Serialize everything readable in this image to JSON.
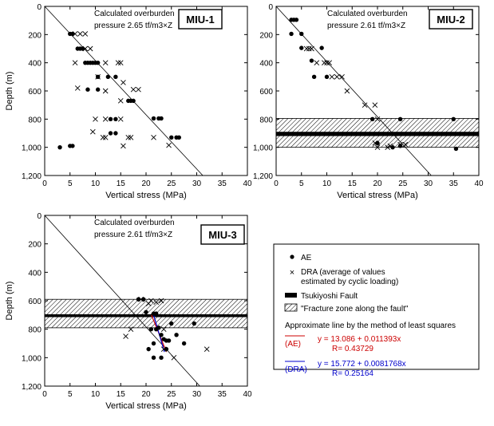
{
  "figure": {
    "xlabel": "Vertical stress (MPa)",
    "ylabel": "Depth (m)",
    "xticks": [
      0,
      5,
      10,
      15,
      20,
      25,
      30,
      35,
      40
    ],
    "yticks": [
      0,
      200,
      400,
      600,
      800,
      "1,000",
      "1,200"
    ]
  },
  "chart_data": [
    {
      "type": "scatter",
      "name": "MIU-1",
      "title": "MIU-1",
      "annotation": [
        "Calculated overburden",
        "pressure 2.65 tf/m3×Z"
      ],
      "xlabel": "Vertical stress (MPa)",
      "ylabel": "Depth (m)",
      "xlim": [
        0,
        40
      ],
      "ylim": [
        1200,
        0
      ],
      "y_inverted": true,
      "overburden_line": [
        [
          0,
          0
        ],
        [
          26,
          1000
        ]
      ],
      "series": [
        {
          "name": "AE",
          "marker": "dot",
          "points": [
            [
              5.0,
              195
            ],
            [
              5.5,
              195
            ],
            [
              6.5,
              300
            ],
            [
              7.0,
              300
            ],
            [
              7.5,
              300
            ],
            [
              8.0,
              400
            ],
            [
              8.5,
              400
            ],
            [
              9.0,
              400
            ],
            [
              9.5,
              400
            ],
            [
              10.0,
              400
            ],
            [
              10.5,
              400
            ],
            [
              8.5,
              590
            ],
            [
              10.5,
              590
            ],
            [
              10.5,
              500
            ],
            [
              12.5,
              500
            ],
            [
              14.0,
              500
            ],
            [
              13.0,
              800
            ],
            [
              14.0,
              800
            ],
            [
              13.0,
              900
            ],
            [
              14.0,
              900
            ],
            [
              16.5,
              670
            ],
            [
              17.0,
              670
            ],
            [
              17.5,
              670
            ],
            [
              21.5,
              795
            ],
            [
              22.5,
              795
            ],
            [
              23.0,
              795
            ],
            [
              25.0,
              930
            ],
            [
              26.0,
              930
            ],
            [
              26.5,
              930
            ],
            [
              3.0,
              1000
            ],
            [
              5.0,
              990
            ],
            [
              5.5,
              990
            ]
          ]
        },
        {
          "name": "DRA",
          "marker": "cross",
          "points": [
            [
              6.0,
              195
            ],
            [
              7.0,
              195
            ],
            [
              8.0,
              195
            ],
            [
              8.0,
              300
            ],
            [
              9.0,
              300
            ],
            [
              6.0,
              400
            ],
            [
              6.5,
              580
            ],
            [
              10.5,
              500
            ],
            [
              12.0,
              400
            ],
            [
              14.5,
              400
            ],
            [
              15.0,
              400
            ],
            [
              12.0,
              600
            ],
            [
              15.5,
              540
            ],
            [
              15.0,
              670
            ],
            [
              17.5,
              590
            ],
            [
              18.5,
              590
            ],
            [
              10.0,
              800
            ],
            [
              12.0,
              800
            ],
            [
              15.0,
              800
            ],
            [
              9.5,
              890
            ],
            [
              11.5,
              930
            ],
            [
              12.0,
              930
            ],
            [
              15.5,
              990
            ],
            [
              16.5,
              930
            ],
            [
              17.0,
              930
            ],
            [
              21.5,
              930
            ],
            [
              24.5,
              985
            ]
          ]
        }
      ]
    },
    {
      "type": "scatter",
      "name": "MIU-2",
      "title": "MIU-2",
      "annotation": [
        "Calculated overburden",
        "pressure 2.61 tf/m3×Z"
      ],
      "xlabel": "Vertical stress (MPa)",
      "ylabel": "",
      "xlim": [
        0,
        40
      ],
      "ylim": [
        1200,
        0
      ],
      "y_inverted": true,
      "overburden_line": [
        [
          0,
          0
        ],
        [
          25,
          980
        ]
      ],
      "bands": [
        {
          "kind": "fracture-zone",
          "from": 795,
          "to": 1000,
          "pattern": "hatch"
        },
        {
          "kind": "fault",
          "from": 890,
          "to": 920,
          "pattern": "solid"
        }
      ],
      "series": [
        {
          "name": "AE",
          "marker": "dot",
          "points": [
            [
              3.0,
              95
            ],
            [
              3.5,
              95
            ],
            [
              4.0,
              95
            ],
            [
              3.0,
              195
            ],
            [
              5.0,
              195
            ],
            [
              5.0,
              295
            ],
            [
              7.0,
              385
            ],
            [
              9.0,
              295
            ],
            [
              7.5,
              500
            ],
            [
              10.0,
              500
            ],
            [
              19.0,
              800
            ],
            [
              24.5,
              800
            ],
            [
              20.0,
              970
            ],
            [
              23.0,
              1000
            ],
            [
              24.5,
              990
            ],
            [
              35.0,
              800
            ],
            [
              35.5,
              1010
            ]
          ]
        },
        {
          "name": "DRA",
          "marker": "cross",
          "points": [
            [
              6.0,
              300
            ],
            [
              6.5,
              300
            ],
            [
              7.0,
              300
            ],
            [
              8.0,
              400
            ],
            [
              9.5,
              400
            ],
            [
              10.0,
              400
            ],
            [
              10.5,
              400
            ],
            [
              11.0,
              500
            ],
            [
              12.0,
              500
            ],
            [
              13.0,
              500
            ],
            [
              14.0,
              600
            ],
            [
              17.5,
              700
            ],
            [
              19.5,
              700
            ],
            [
              20.0,
              800
            ],
            [
              19.5,
              970
            ],
            [
              20.0,
              1000
            ],
            [
              22.0,
              1000
            ],
            [
              22.5,
              990
            ],
            [
              24.5,
              980
            ],
            [
              25.5,
              980
            ]
          ]
        }
      ]
    },
    {
      "type": "scatter",
      "name": "MIU-3",
      "title": "MIU-3",
      "annotation": [
        "Calculated overburden",
        "pressure 2.61 tf/m3×Z"
      ],
      "xlabel": "Vertical stress (MPa)",
      "ylabel": "Depth (m)",
      "xlim": [
        0,
        40
      ],
      "ylim": [
        1200,
        0
      ],
      "y_inverted": true,
      "overburden_line": [
        [
          0,
          0
        ],
        [
          25,
          980
        ]
      ],
      "bands": [
        {
          "kind": "fracture-zone",
          "from": 590,
          "to": 790,
          "pattern": "hatch"
        },
        {
          "kind": "fault",
          "from": 695,
          "to": 715,
          "pattern": "solid"
        }
      ],
      "fit_lines": [
        {
          "label": "AE",
          "color": "#cc0000",
          "intercept": 13.086,
          "slope": 0.011393,
          "range": [
            700,
            960
          ]
        },
        {
          "label": "DRA",
          "color": "#0000cc",
          "intercept": 15.772,
          "slope": 0.0081768,
          "range": [
            700,
            960
          ]
        }
      ],
      "series": [
        {
          "name": "AE",
          "marker": "dot",
          "points": [
            [
              18.5,
              590
            ],
            [
              19.5,
              590
            ],
            [
              20.0,
              680
            ],
            [
              21.5,
              690
            ],
            [
              22.0,
              690
            ],
            [
              21.0,
              800
            ],
            [
              22.0,
              800
            ],
            [
              22.5,
              790
            ],
            [
              23.0,
              840
            ],
            [
              23.5,
              870
            ],
            [
              24.0,
              880
            ],
            [
              24.5,
              880
            ],
            [
              21.5,
              900
            ],
            [
              20.5,
              940
            ],
            [
              24.0,
              940
            ],
            [
              21.5,
              1000
            ],
            [
              23.0,
              1000
            ],
            [
              26.0,
              840
            ],
            [
              27.5,
              900
            ],
            [
              25.0,
              760
            ],
            [
              29.5,
              760
            ]
          ]
        },
        {
          "name": "DRA",
          "marker": "cross",
          "points": [
            [
              16.0,
              850
            ],
            [
              17.0,
              800
            ],
            [
              19.0,
              590
            ],
            [
              20.5,
              620
            ],
            [
              21.0,
              600
            ],
            [
              22.0,
              610
            ],
            [
              23.0,
              600
            ],
            [
              23.5,
              800
            ],
            [
              23.5,
              940
            ],
            [
              25.5,
              1000
            ],
            [
              32.0,
              940
            ]
          ]
        }
      ]
    }
  ],
  "legend": {
    "items": [
      {
        "symbol": "dot",
        "label": "AE"
      },
      {
        "symbol": "cross",
        "label": "DRA (average of values",
        "label2": "estimated by cyclic loading)"
      },
      {
        "symbol": "solid-bar",
        "label": "Tsukiyoshi Fault"
      },
      {
        "symbol": "hatch-box",
        "label": "\"Fracture zone along the fault\""
      }
    ],
    "fit_title": "Approximate line by the method of least squares",
    "fits": [
      {
        "tag": "(AE)",
        "eq": "y = 13.086 + 0.011393x",
        "r": "R= 0.43729",
        "color": "#cc0000"
      },
      {
        "tag": "(DRA)",
        "eq": "y = 15.772 + 0.0081768x",
        "r": "R= 0.25164",
        "color": "#0000cc"
      }
    ]
  }
}
